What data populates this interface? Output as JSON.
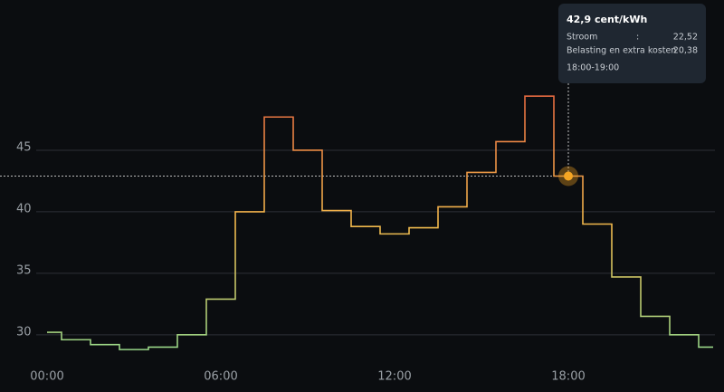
{
  "chart_data": {
    "type": "step",
    "x": [
      0,
      1,
      2,
      3,
      4,
      5,
      6,
      7,
      8,
      9,
      10,
      11,
      12,
      13,
      14,
      15,
      16,
      17,
      18,
      19,
      20,
      21,
      22,
      23
    ],
    "values": [
      30.2,
      29.6,
      29.2,
      28.8,
      29.0,
      30.0,
      32.9,
      40.0,
      47.7,
      45.0,
      40.1,
      38.8,
      38.2,
      38.7,
      40.4,
      43.2,
      45.7,
      49.4,
      42.9,
      39.0,
      34.7,
      31.5,
      30.0,
      29.0
    ],
    "xlim": [
      0,
      23
    ],
    "xticks": [
      {
        "value": 0,
        "label": "00:00"
      },
      {
        "value": 6,
        "label": "06:00"
      },
      {
        "value": 12,
        "label": "12:00"
      },
      {
        "value": 18,
        "label": "18:00"
      }
    ],
    "ylim": [
      28,
      50
    ],
    "yticks": [
      30,
      35,
      40,
      45
    ],
    "grid": true,
    "colors": [
      "#8fd68b",
      "#f2b84b",
      "#e5663f"
    ],
    "highlight": 18,
    "tooltip": {
      "title": "42,9 cent/kWh",
      "rows": [
        {
          "label": "Stroom",
          "separator": ":",
          "value": "22,52"
        },
        {
          "label": "Belasting en extra kosten",
          "separator": ":",
          "value": "20,38"
        }
      ],
      "time": "18:00-19:00"
    }
  }
}
